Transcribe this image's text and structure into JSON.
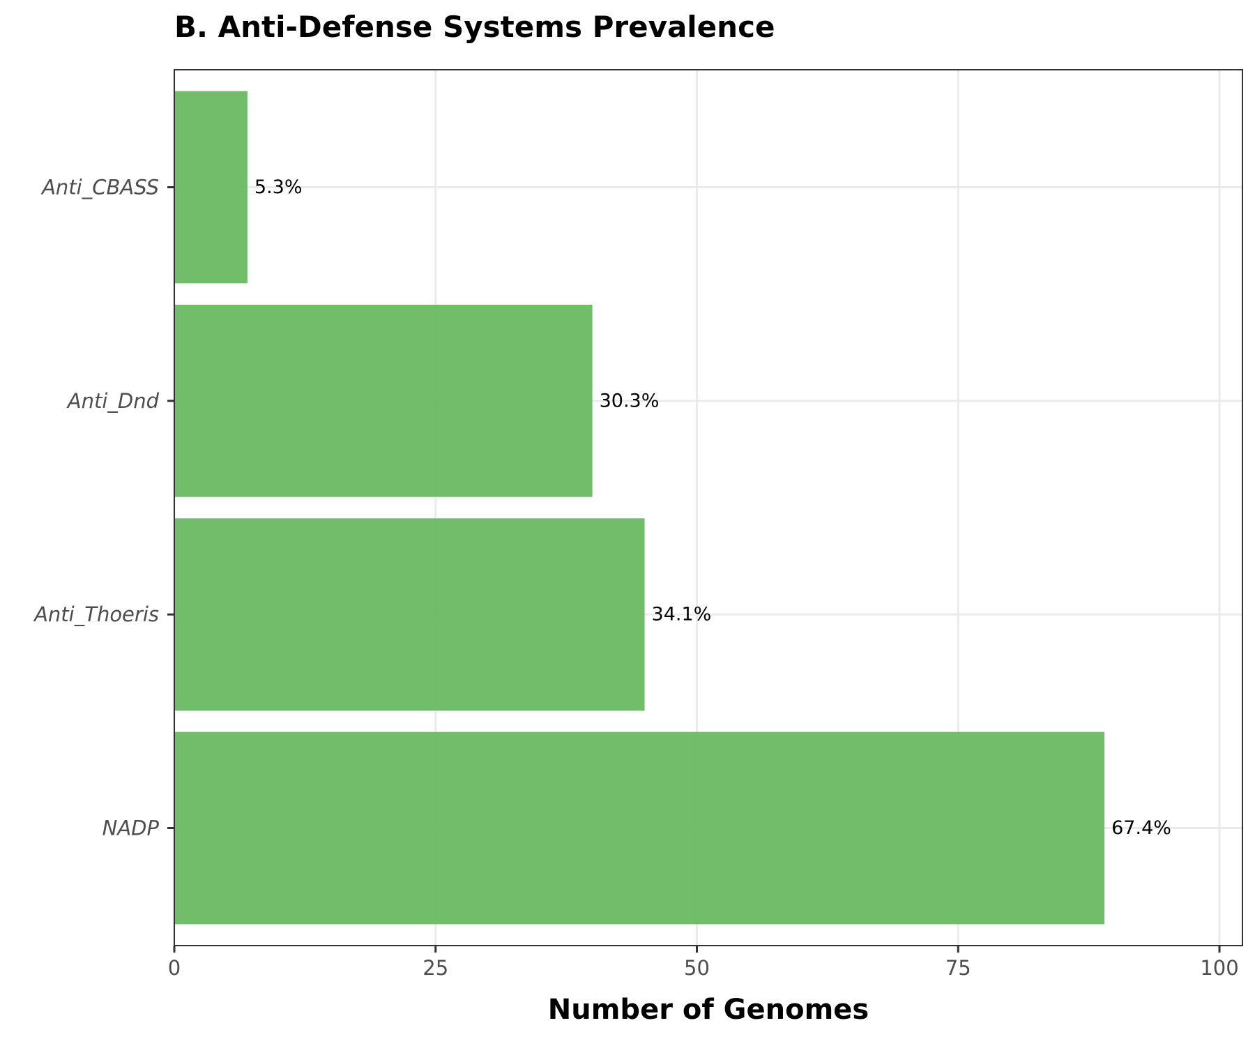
{
  "chart_data": {
    "type": "bar",
    "orientation": "horizontal",
    "title": "B. Anti-Defense Systems Prevalence",
    "xlabel": "Number of Genomes",
    "ylabel": "",
    "categories": [
      "Anti_CBASS",
      "Anti_Dnd",
      "Anti_Thoeris",
      "NADP"
    ],
    "values": [
      7,
      40,
      45,
      89
    ],
    "data_labels": [
      "5.3%",
      "30.3%",
      "34.1%",
      "67.4%"
    ],
    "xlim": [
      0,
      100
    ],
    "xticks": [
      "0",
      "25",
      "50",
      "75",
      "100"
    ],
    "grid": true,
    "bar_color": "#66b85f"
  }
}
